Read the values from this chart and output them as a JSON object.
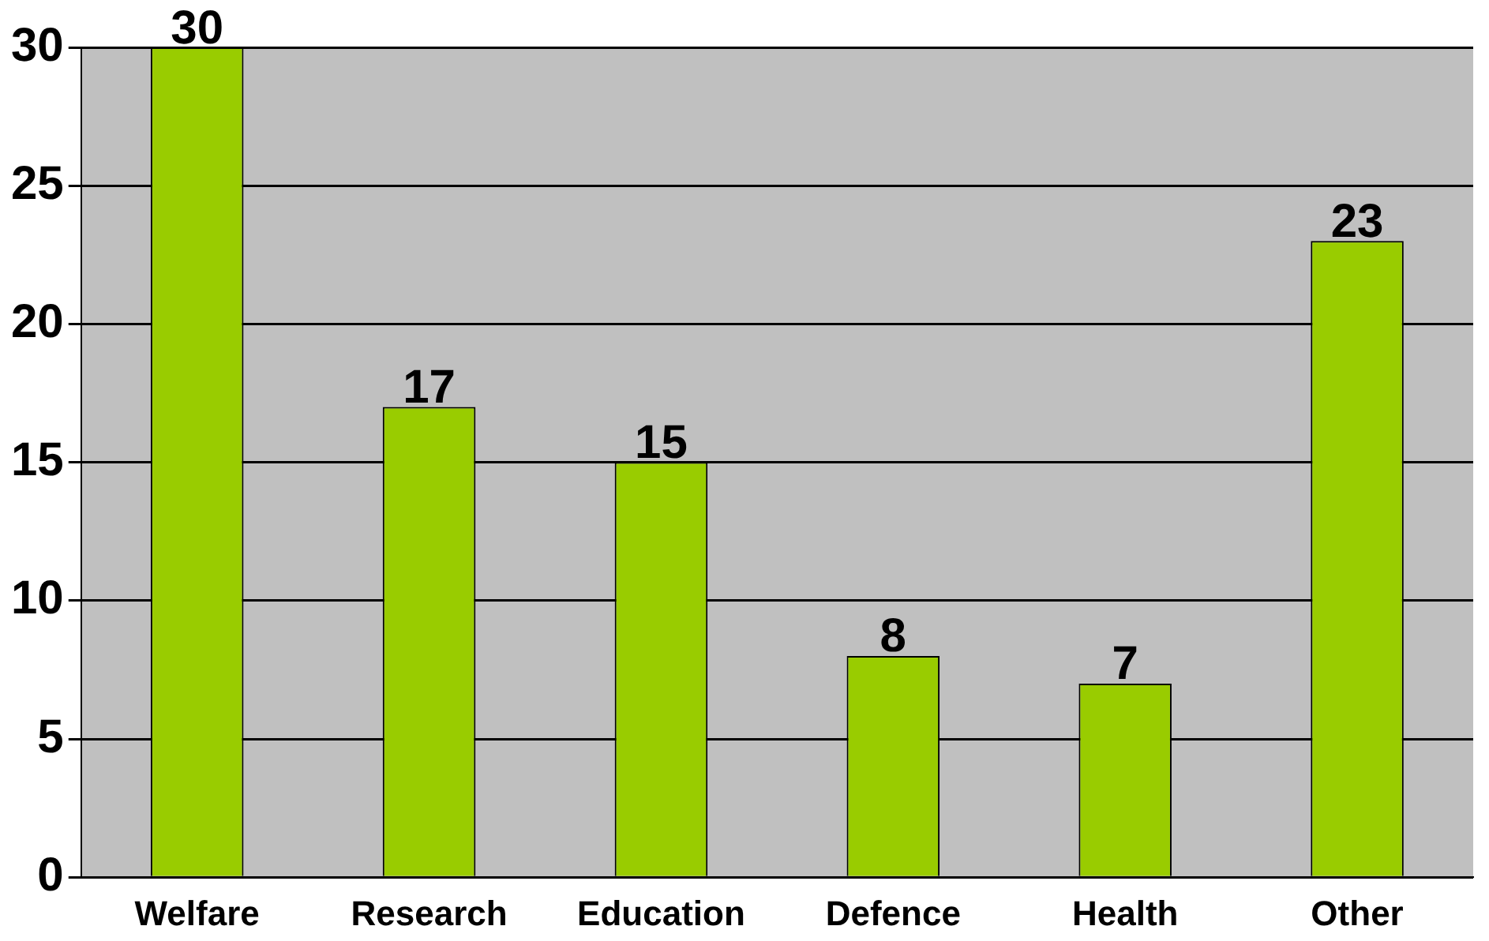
{
  "chart_data": {
    "type": "bar",
    "categories": [
      "Welfare",
      "Research",
      "Education",
      "Defence",
      "Health",
      "Other"
    ],
    "values": [
      30,
      17,
      15,
      8,
      7,
      23
    ],
    "color": "#99cc00",
    "ylim": [
      0,
      30
    ],
    "yticks": [
      0,
      5,
      10,
      15,
      20,
      25,
      30
    ],
    "grid": "y",
    "data_labels": true
  }
}
